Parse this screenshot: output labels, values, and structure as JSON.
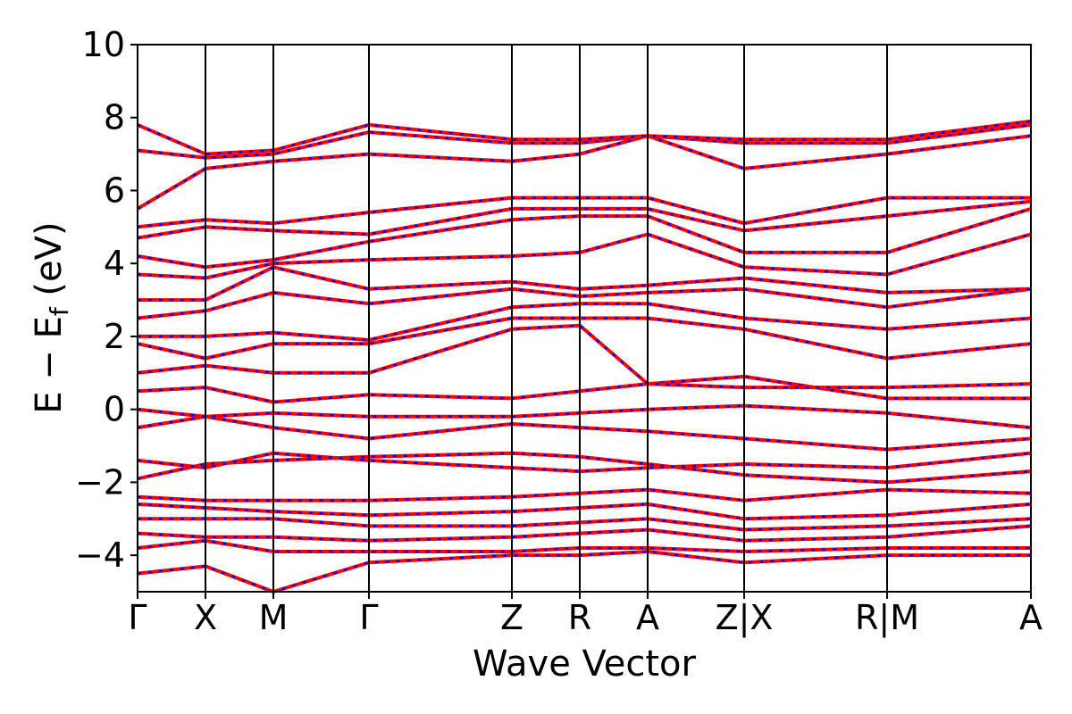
{
  "chart_data": {
    "type": "line",
    "title": "",
    "xlabel": "Wave Vector",
    "ylabel": {
      "prefix": "E − E",
      "subscript": "f",
      "suffix": " (eV)"
    },
    "ylim": [
      -5,
      10
    ],
    "yticks": [
      -4,
      -2,
      0,
      2,
      4,
      6,
      8,
      10
    ],
    "ytick_labels": [
      "−4",
      "−2",
      "0",
      "2",
      "4",
      "6",
      "8",
      "10"
    ],
    "xlim": [
      0,
      1
    ],
    "kpoints": [
      {
        "label": "Γ",
        "x": 0.0
      },
      {
        "label": "X",
        "x": 0.076
      },
      {
        "label": "M",
        "x": 0.152
      },
      {
        "label": "Γ",
        "x": 0.259
      },
      {
        "label": "Z",
        "x": 0.419
      },
      {
        "label": "R",
        "x": 0.495
      },
      {
        "label": "A",
        "x": 0.571
      },
      {
        "label": "Z|X",
        "x": 0.679
      },
      {
        "label": "R|M",
        "x": 0.839
      },
      {
        "label": "A",
        "x": 1.0
      }
    ],
    "grid": false,
    "legend": "none",
    "series_style": {
      "primary_color": "#ff0000",
      "overlay_color": "#0000ff",
      "overlay_dash": "dashed"
    },
    "bands": [
      {
        "name": "",
        "x": [
          0,
          0.076,
          0.152,
          0.259,
          0.419,
          0.495,
          0.571,
          0.679,
          0.839,
          1.0
        ],
        "y": [
          -4.5,
          -4.3,
          -5.0,
          -4.2,
          -4.0,
          -4.0,
          -3.9,
          -4.2,
          -4.0,
          -4.0
        ]
      },
      {
        "name": "",
        "x": [
          0,
          0.076,
          0.152,
          0.259,
          0.419,
          0.495,
          0.571,
          0.679,
          0.839,
          1.0
        ],
        "y": [
          -3.8,
          -3.6,
          -3.9,
          -3.9,
          -3.9,
          -3.8,
          -3.8,
          -3.9,
          -3.8,
          -3.8
        ]
      },
      {
        "name": "",
        "x": [
          0,
          0.076,
          0.152,
          0.259,
          0.419,
          0.495,
          0.571,
          0.679,
          0.839,
          1.0
        ],
        "y": [
          -3.4,
          -3.5,
          -3.5,
          -3.6,
          -3.5,
          -3.4,
          -3.3,
          -3.6,
          -3.5,
          -3.2
        ]
      },
      {
        "name": "",
        "x": [
          0,
          0.076,
          0.152,
          0.259,
          0.419,
          0.495,
          0.571,
          0.679,
          0.839,
          1.0
        ],
        "y": [
          -3.0,
          -3.0,
          -3.0,
          -3.2,
          -3.2,
          -3.1,
          -3.0,
          -3.3,
          -3.2,
          -3.0
        ]
      },
      {
        "name": "",
        "x": [
          0,
          0.076,
          0.152,
          0.259,
          0.419,
          0.495,
          0.571,
          0.679,
          0.839,
          1.0
        ],
        "y": [
          -2.6,
          -2.7,
          -2.8,
          -2.9,
          -2.8,
          -2.7,
          -2.6,
          -3.0,
          -2.9,
          -2.6
        ]
      },
      {
        "name": "",
        "x": [
          0,
          0.076,
          0.152,
          0.259,
          0.419,
          0.495,
          0.571,
          0.679,
          0.839,
          1.0
        ],
        "y": [
          -2.4,
          -2.5,
          -2.5,
          -2.5,
          -2.4,
          -2.3,
          -2.2,
          -2.5,
          -2.2,
          -2.3
        ]
      },
      {
        "name": "",
        "x": [
          0,
          0.076,
          0.152,
          0.259,
          0.419,
          0.495,
          0.571,
          0.679,
          0.839,
          1.0
        ],
        "y": [
          -1.9,
          -1.5,
          -1.4,
          -1.3,
          -1.2,
          -1.3,
          -1.5,
          -1.8,
          -2.0,
          -1.7
        ]
      },
      {
        "name": "",
        "x": [
          0,
          0.076,
          0.152,
          0.259,
          0.419,
          0.495,
          0.571,
          0.679,
          0.839,
          1.0
        ],
        "y": [
          -1.4,
          -1.6,
          -1.2,
          -1.4,
          -1.6,
          -1.7,
          -1.6,
          -1.5,
          -1.6,
          -1.2
        ]
      },
      {
        "name": "",
        "x": [
          0,
          0.076,
          0.152,
          0.259,
          0.419,
          0.495,
          0.571,
          0.679,
          0.839,
          1.0
        ],
        "y": [
          -0.5,
          -0.2,
          -0.5,
          -0.8,
          -0.4,
          -0.5,
          -0.6,
          -0.8,
          -1.1,
          -0.8
        ]
      },
      {
        "name": "",
        "x": [
          0,
          0.076,
          0.152,
          0.259,
          0.419,
          0.495,
          0.571,
          0.679,
          0.839,
          1.0
        ],
        "y": [
          0.0,
          -0.2,
          -0.1,
          -0.2,
          -0.2,
          -0.1,
          0.0,
          0.1,
          -0.1,
          -0.5
        ]
      },
      {
        "name": "",
        "x": [
          0,
          0.076,
          0.152,
          0.259,
          0.419,
          0.495,
          0.571,
          0.679,
          0.839,
          1.0
        ],
        "y": [
          0.5,
          0.6,
          0.2,
          0.4,
          0.3,
          0.5,
          0.7,
          0.9,
          0.3,
          0.3
        ]
      },
      {
        "name": "",
        "x": [
          0,
          0.076,
          0.152,
          0.259,
          0.419,
          0.495,
          0.571,
          0.679,
          0.839,
          1.0
        ],
        "y": [
          1.0,
          1.2,
          1.0,
          1.0,
          2.2,
          2.3,
          0.7,
          0.6,
          0.6,
          0.7
        ]
      },
      {
        "name": "",
        "x": [
          0,
          0.076,
          0.152,
          0.259,
          0.419,
          0.495,
          0.571,
          0.679,
          0.839,
          1.0
        ],
        "y": [
          1.8,
          1.4,
          1.8,
          1.8,
          2.5,
          2.5,
          2.5,
          2.2,
          1.4,
          1.8
        ]
      },
      {
        "name": "",
        "x": [
          0,
          0.076,
          0.152,
          0.259,
          0.419,
          0.495,
          0.571,
          0.679,
          0.839,
          1.0
        ],
        "y": [
          2.0,
          2.0,
          2.1,
          1.9,
          2.8,
          2.9,
          2.9,
          2.5,
          2.2,
          2.5
        ]
      },
      {
        "name": "",
        "x": [
          0,
          0.076,
          0.152,
          0.259,
          0.419,
          0.495,
          0.571,
          0.679,
          0.839,
          1.0
        ],
        "y": [
          2.5,
          2.7,
          3.2,
          2.9,
          3.3,
          3.1,
          3.2,
          3.3,
          2.8,
          3.3
        ]
      },
      {
        "name": "",
        "x": [
          0,
          0.076,
          0.152,
          0.259,
          0.419,
          0.495,
          0.571,
          0.679,
          0.839,
          1.0
        ],
        "y": [
          3.0,
          3.0,
          3.9,
          3.3,
          3.5,
          3.3,
          3.4,
          3.6,
          3.2,
          3.3
        ]
      },
      {
        "name": "",
        "x": [
          0,
          0.076,
          0.152,
          0.259,
          0.419,
          0.495,
          0.571,
          0.679,
          0.839,
          1.0
        ],
        "y": [
          3.7,
          3.6,
          4.0,
          4.1,
          4.2,
          4.3,
          4.8,
          3.9,
          3.7,
          4.8
        ]
      },
      {
        "name": "",
        "x": [
          0,
          0.076,
          0.152,
          0.259,
          0.419,
          0.495,
          0.571,
          0.679,
          0.839,
          1.0
        ],
        "y": [
          4.2,
          3.9,
          4.1,
          4.6,
          5.2,
          5.3,
          5.3,
          4.3,
          4.3,
          5.5
        ]
      },
      {
        "name": "",
        "x": [
          0,
          0.076,
          0.152,
          0.259,
          0.419,
          0.495,
          0.571,
          0.679,
          0.839,
          1.0
        ],
        "y": [
          4.7,
          5.0,
          4.9,
          4.8,
          5.5,
          5.5,
          5.5,
          4.9,
          5.3,
          5.7
        ]
      },
      {
        "name": "",
        "x": [
          0,
          0.076,
          0.152,
          0.259,
          0.419,
          0.495,
          0.571,
          0.679,
          0.839,
          1.0
        ],
        "y": [
          5.0,
          5.2,
          5.1,
          5.4,
          5.8,
          5.8,
          5.8,
          5.1,
          5.8,
          5.8
        ]
      },
      {
        "name": "",
        "x": [
          0,
          0.076,
          0.152,
          0.259,
          0.419,
          0.495,
          0.571,
          0.679,
          0.839,
          1.0
        ],
        "y": [
          5.5,
          6.6,
          6.8,
          7.0,
          6.8,
          7.0,
          7.5,
          6.6,
          7.0,
          7.5
        ]
      },
      {
        "name": "",
        "x": [
          0,
          0.076,
          0.152,
          0.259,
          0.419,
          0.495,
          0.571,
          0.679,
          0.839,
          1.0
        ],
        "y": [
          7.1,
          6.9,
          7.0,
          7.6,
          7.3,
          7.3,
          7.5,
          7.3,
          7.3,
          7.8
        ]
      },
      {
        "name": "",
        "x": [
          0,
          0.076,
          0.152,
          0.259,
          0.419,
          0.495,
          0.571,
          0.679,
          0.839,
          1.0
        ],
        "y": [
          7.8,
          7.0,
          7.1,
          7.8,
          7.4,
          7.4,
          7.5,
          7.4,
          7.4,
          7.9
        ]
      }
    ]
  }
}
